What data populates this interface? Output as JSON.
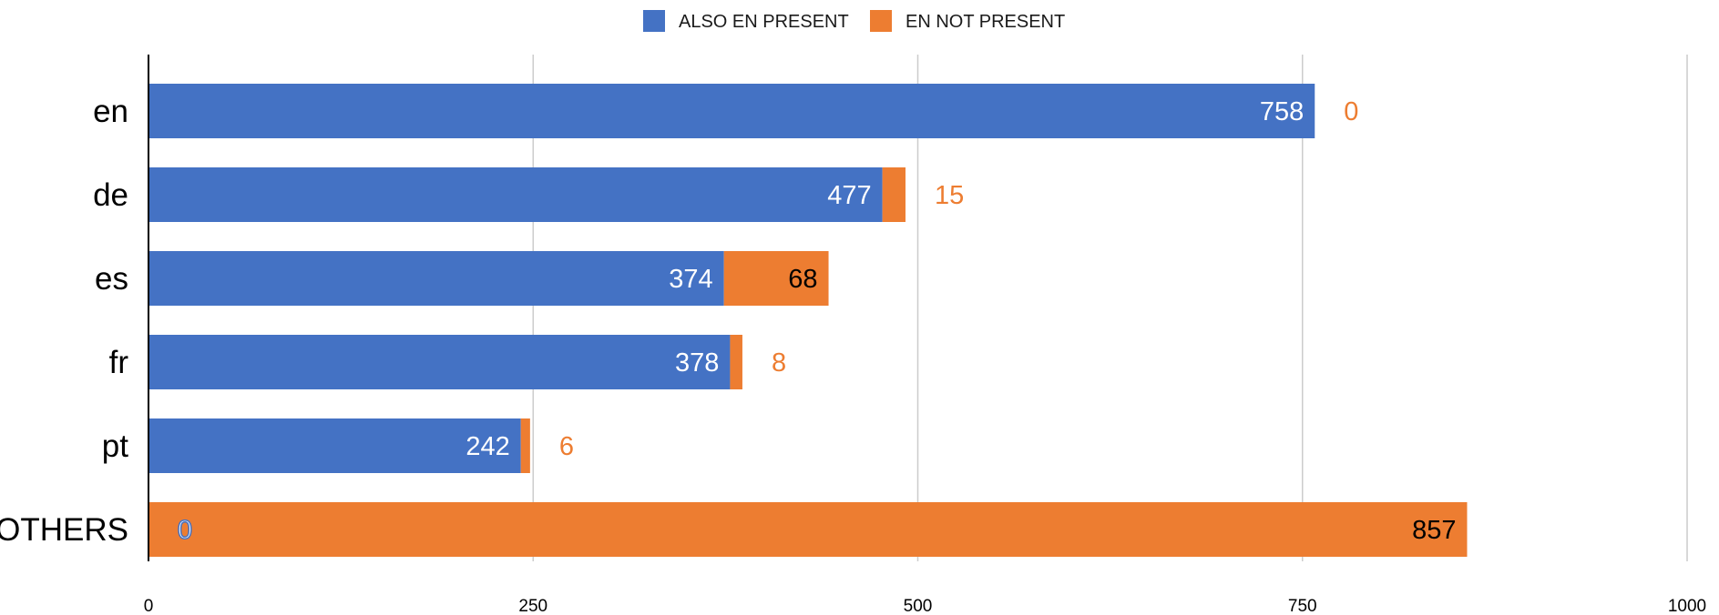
{
  "chart_data": {
    "type": "bar",
    "orientation": "horizontal",
    "stacked": true,
    "categories": [
      "en",
      "de",
      "es",
      "fr",
      "pt",
      "OTHERS"
    ],
    "series": [
      {
        "name": "ALSO EN PRESENT",
        "color": "#4472C4",
        "values": [
          758,
          477,
          374,
          378,
          242,
          0
        ],
        "labels": [
          "758",
          "477",
          "374",
          "378",
          "242",
          "0"
        ]
      },
      {
        "name": "EN NOT PRESENT",
        "color": "#ED7D31",
        "values": [
          0,
          15,
          68,
          8,
          6,
          857
        ],
        "labels": [
          "0",
          "15",
          "68",
          "8",
          "6",
          "857"
        ]
      }
    ],
    "xlim": [
      0,
      1000
    ],
    "xticks": [
      "0",
      "250",
      "500",
      "750",
      "1000"
    ],
    "xtick_values": [
      0,
      250,
      500,
      750,
      1000
    ],
    "grid": true,
    "legend_position": "top-center",
    "title": "",
    "xlabel": "",
    "ylabel": ""
  }
}
